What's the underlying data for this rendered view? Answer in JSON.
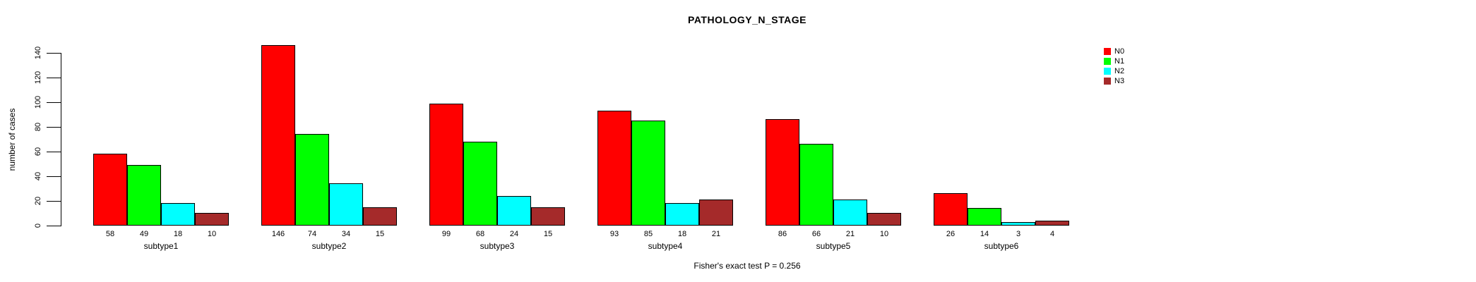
{
  "title": "PATHOLOGY_N_STAGE",
  "footer": "Fisher's exact test P = 0.256",
  "y_axis": {
    "label": "number of cases",
    "ticks": [
      0,
      20,
      40,
      60,
      80,
      100,
      120,
      140
    ]
  },
  "legend": {
    "items": [
      {
        "label": "N0",
        "color": "#FF0000"
      },
      {
        "label": "N1",
        "color": "#00FF00"
      },
      {
        "label": "N2",
        "color": "#00FFFF"
      },
      {
        "label": "N3",
        "color": "#A52A2A"
      }
    ]
  },
  "chart_data": {
    "type": "bar",
    "title": "PATHOLOGY_N_STAGE",
    "categories": [
      "subtype1",
      "subtype2",
      "subtype3",
      "subtype4",
      "subtype5",
      "subtype6"
    ],
    "series": [
      {
        "name": "N0",
        "color": "#FF0000",
        "values": [
          58,
          146,
          99,
          93,
          86,
          26
        ]
      },
      {
        "name": "N1",
        "color": "#00FF00",
        "values": [
          49,
          74,
          68,
          85,
          66,
          14
        ]
      },
      {
        "name": "N2",
        "color": "#00FFFF",
        "values": [
          18,
          34,
          24,
          18,
          21,
          3
        ]
      },
      {
        "name": "N3",
        "color": "#A52A2A",
        "values": [
          10,
          15,
          15,
          21,
          10,
          4
        ]
      }
    ],
    "xlabel": "",
    "ylabel": "number of cases",
    "y_ticks": [
      0,
      20,
      40,
      60,
      80,
      100,
      120,
      140
    ],
    "ylim": [
      0,
      146
    ],
    "grid": false,
    "legend_position": "top-right",
    "bar_value_labels_shown": true,
    "annotation": "Fisher's exact test P = 0.256"
  }
}
